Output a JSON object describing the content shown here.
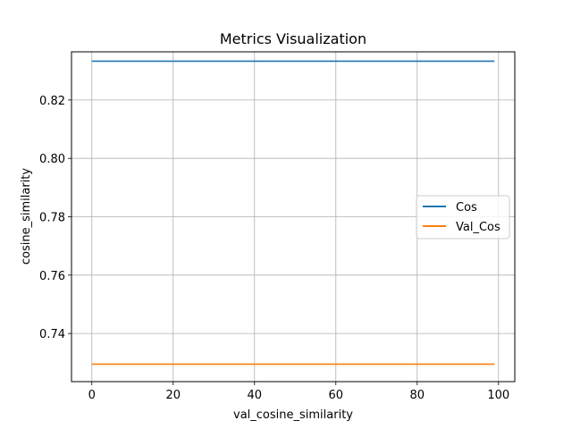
{
  "chart_data": {
    "type": "line",
    "title": "Metrics Visualization",
    "xlabel": "val_cosine_similarity",
    "ylabel": "cosine_similarity",
    "xlim": [
      -5,
      104
    ],
    "ylim": [
      0.7235,
      0.8365
    ],
    "xticks": [
      0,
      20,
      40,
      60,
      80,
      100
    ],
    "yticks": [
      0.74,
      0.76,
      0.78,
      0.8,
      0.82
    ],
    "ytick_labels": [
      "0.74",
      "0.76",
      "0.78",
      "0.80",
      "0.82"
    ],
    "grid": true,
    "legend_position": "center-right",
    "series": [
      {
        "name": "Cos",
        "color": "#1f77b4",
        "x": [
          0,
          99
        ],
        "y": [
          0.8333,
          0.8333
        ]
      },
      {
        "name": "Val_Cos",
        "color": "#ff7f0e",
        "x": [
          0,
          99
        ],
        "y": [
          0.7295,
          0.7295
        ]
      }
    ]
  }
}
